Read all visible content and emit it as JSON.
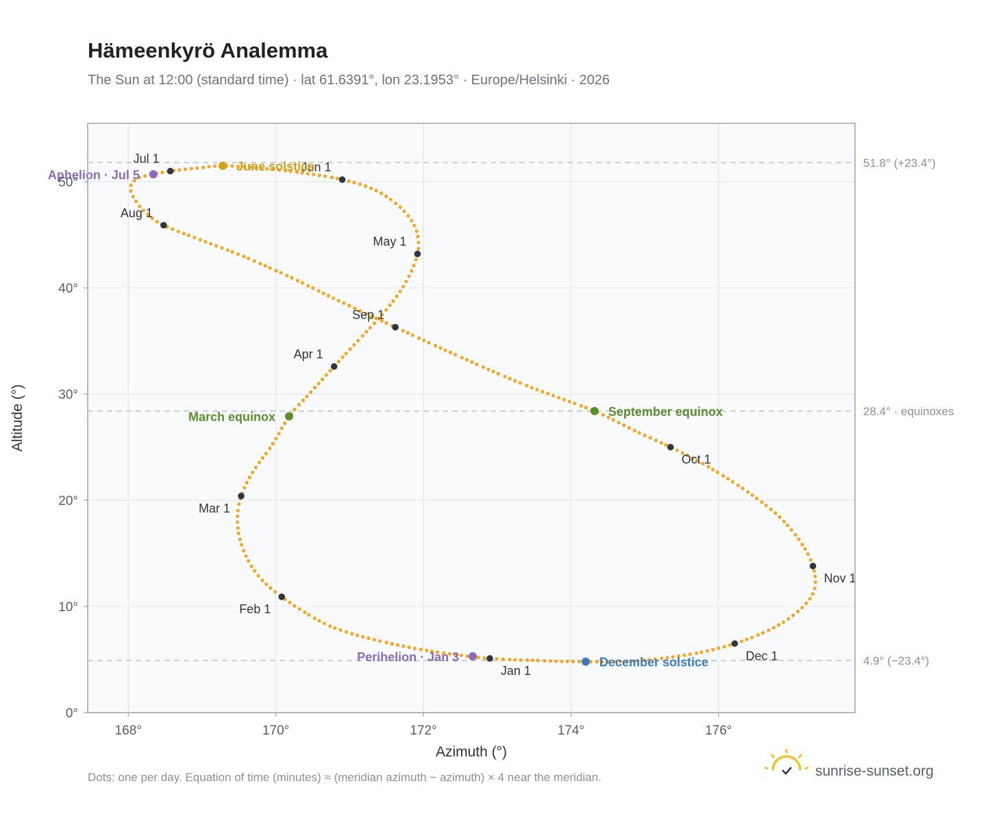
{
  "colors": {
    "curve": "#f5a623",
    "month_dot": "#2f3640",
    "solstice_june": "#d4a017",
    "solstice_december": "#3b7bbf",
    "equinox": "#5b8f2e",
    "apsis": "#8e6bb5",
    "reference_line": "#c0c5cc",
    "grid": "#e3e7ec",
    "plot_bg": "#f8fafc",
    "frame": "#9aa3ad",
    "logo": "#f2c12e"
  },
  "footer": {
    "note": "Dots: one per day. Equation of time (minutes) ≈ (meridian azimuth − azimuth) × 4 near the meridian.",
    "brand": "sunrise-sunset.org",
    "logo_icon": "sun-horizon-icon"
  },
  "chart_data": {
    "type": "scatter",
    "title": "Hämeenkyrö Analemma",
    "subtitle": "The Sun at 12:00 (standard time) · lat 61.6391°, lon 23.1953° · Europe/Helsinki · 2026",
    "xlabel": "Azimuth (°)",
    "ylabel": "Altitude (°)",
    "xlim": [
      167.45,
      177.85
    ],
    "ylim": [
      0,
      55.5
    ],
    "xticks": [
      {
        "v": 168,
        "label": "168°"
      },
      {
        "v": 170,
        "label": "170°"
      },
      {
        "v": 172,
        "label": "172°"
      },
      {
        "v": 174,
        "label": "174°"
      },
      {
        "v": 176,
        "label": "176°"
      }
    ],
    "yticks": [
      {
        "v": 0,
        "label": "0°"
      },
      {
        "v": 10,
        "label": "10°"
      },
      {
        "v": 20,
        "label": "20°"
      },
      {
        "v": 30,
        "label": "30°"
      },
      {
        "v": 40,
        "label": "40°"
      },
      {
        "v": 50,
        "label": "50°"
      }
    ],
    "grid": true,
    "reference_lines": [
      {
        "y": 51.8,
        "label": "51.8° (+23.4°)"
      },
      {
        "y": 28.4,
        "label": "28.4° · equinoxes"
      },
      {
        "y": 4.9,
        "label": "4.9° (−23.4°)"
      }
    ],
    "monthly_points": [
      {
        "label": "Jan 1",
        "x": 172.9,
        "y": 5.1,
        "pos": "below-right"
      },
      {
        "label": "Feb 1",
        "x": 170.08,
        "y": 10.9,
        "pos": "below-left"
      },
      {
        "label": "Mar 1",
        "x": 169.53,
        "y": 20.4,
        "pos": "below-left"
      },
      {
        "label": "Apr 1",
        "x": 170.79,
        "y": 32.6,
        "pos": "above-left"
      },
      {
        "label": "May 1",
        "x": 171.92,
        "y": 43.2,
        "pos": "above-left"
      },
      {
        "label": "Jun 1",
        "x": 170.9,
        "y": 50.2,
        "pos": "above-left"
      },
      {
        "label": "Jul 1",
        "x": 168.57,
        "y": 51.0,
        "pos": "above-left"
      },
      {
        "label": "Aug 1",
        "x": 168.48,
        "y": 45.9,
        "pos": "above-left"
      },
      {
        "label": "Sep 1",
        "x": 171.62,
        "y": 36.3,
        "pos": "above-left"
      },
      {
        "label": "Oct 1",
        "x": 175.35,
        "y": 25.0,
        "pos": "below-right"
      },
      {
        "label": "Nov 1",
        "x": 177.28,
        "y": 13.8,
        "pos": "below-right"
      },
      {
        "label": "Dec 1",
        "x": 176.22,
        "y": 6.5,
        "pos": "below-right"
      }
    ],
    "events": [
      {
        "label": "June solstice",
        "x": 169.28,
        "y": 51.5,
        "color_key": "solstice_june",
        "side": "right"
      },
      {
        "label": "Aphelion · Jul 5",
        "x": 168.34,
        "y": 50.7,
        "color_key": "apsis",
        "side": "left"
      },
      {
        "label": "March equinox",
        "x": 170.18,
        "y": 27.9,
        "color_key": "equinox",
        "side": "left"
      },
      {
        "label": "September equinox",
        "x": 174.32,
        "y": 28.4,
        "color_key": "equinox",
        "side": "right"
      },
      {
        "label": "Perihelion · Jan 3",
        "x": 172.67,
        "y": 5.3,
        "color_key": "apsis",
        "side": "left"
      },
      {
        "label": "December solstice",
        "x": 174.2,
        "y": 4.8,
        "color_key": "solstice_december",
        "side": "right"
      }
    ],
    "analemma_path": [
      [
        172.9,
        5.1
      ],
      [
        172.4,
        5.5
      ],
      [
        172.0,
        5.9
      ],
      [
        171.5,
        6.6
      ],
      [
        171.0,
        7.5
      ],
      [
        170.6,
        8.6
      ],
      [
        170.08,
        10.9
      ],
      [
        169.75,
        13.0
      ],
      [
        169.55,
        15.5
      ],
      [
        169.48,
        18.0
      ],
      [
        169.53,
        20.4
      ],
      [
        169.7,
        22.8
      ],
      [
        169.95,
        25.2
      ],
      [
        170.18,
        27.9
      ],
      [
        170.45,
        30.0
      ],
      [
        170.79,
        32.6
      ],
      [
        171.15,
        35.3
      ],
      [
        171.48,
        37.8
      ],
      [
        171.75,
        40.4
      ],
      [
        171.92,
        43.2
      ],
      [
        171.9,
        45.5
      ],
      [
        171.7,
        47.5
      ],
      [
        171.35,
        49.2
      ],
      [
        170.9,
        50.2
      ],
      [
        170.3,
        50.9
      ],
      [
        169.75,
        51.3
      ],
      [
        169.28,
        51.5
      ],
      [
        168.95,
        51.3
      ],
      [
        168.57,
        51.0
      ],
      [
        168.34,
        50.7
      ],
      [
        168.12,
        50.3
      ],
      [
        168.03,
        49.4
      ],
      [
        168.1,
        48.2
      ],
      [
        168.25,
        47.0
      ],
      [
        168.48,
        45.9
      ],
      [
        168.95,
        44.6
      ],
      [
        169.55,
        43.0
      ],
      [
        170.2,
        41.0
      ],
      [
        170.85,
        38.8
      ],
      [
        171.62,
        36.3
      ],
      [
        172.5,
        33.5
      ],
      [
        173.4,
        30.8
      ],
      [
        174.32,
        28.4
      ],
      [
        174.85,
        26.6
      ],
      [
        175.35,
        25.0
      ],
      [
        175.85,
        23.2
      ],
      [
        176.35,
        21.0
      ],
      [
        176.8,
        18.6
      ],
      [
        177.1,
        16.2
      ],
      [
        177.28,
        13.8
      ],
      [
        177.3,
        11.6
      ],
      [
        177.12,
        9.8
      ],
      [
        176.75,
        8.0
      ],
      [
        176.22,
        6.5
      ],
      [
        175.7,
        5.6
      ],
      [
        175.1,
        5.0
      ],
      [
        174.6,
        4.8
      ],
      [
        174.2,
        4.8
      ],
      [
        173.6,
        4.9
      ],
      [
        172.9,
        5.1
      ]
    ]
  }
}
